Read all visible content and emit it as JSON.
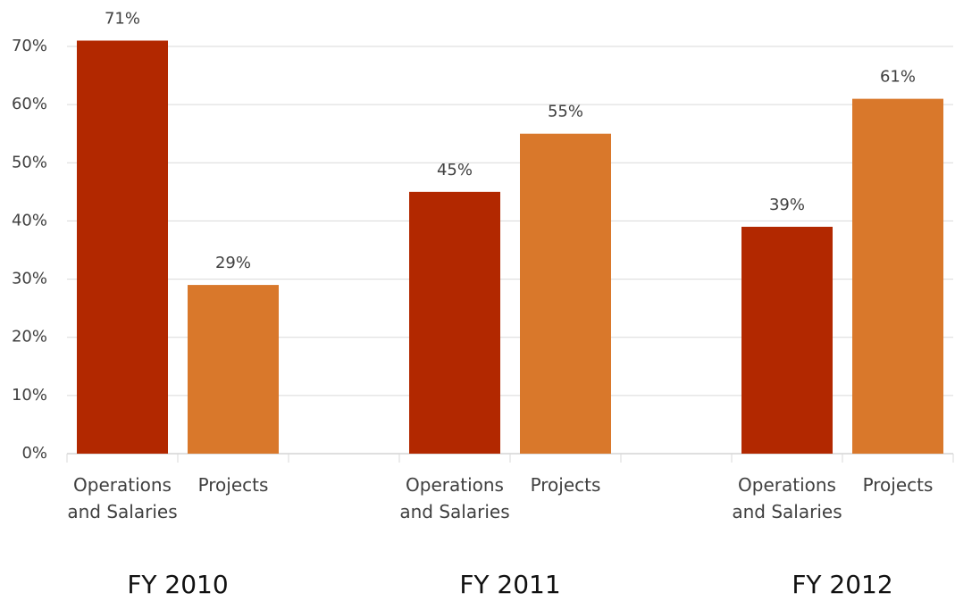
{
  "chart_data": {
    "type": "bar",
    "categories": [
      "Operations and Salaries",
      "Projects",
      null,
      "Operations and Salaries",
      "Projects",
      null,
      "Operations and Salaries",
      "Projects"
    ],
    "values": [
      71,
      29,
      null,
      45,
      55,
      null,
      39,
      61
    ],
    "value_labels": [
      "71%",
      "29%",
      null,
      "45%",
      "55%",
      null,
      "39%",
      "61%"
    ],
    "bar_colors": [
      "#b22800",
      "#d9782b",
      null,
      "#b22800",
      "#d9782b",
      null,
      "#b22800",
      "#d9782b"
    ],
    "group_labels": [
      "FY 2010",
      "FY 2011",
      "FY 2012"
    ],
    "ylim": [
      0,
      70
    ],
    "yticks": [
      {
        "value": 0,
        "label": "0%"
      },
      {
        "value": 10,
        "label": "10%"
      },
      {
        "value": 20,
        "label": "20%"
      },
      {
        "value": 30,
        "label": "30%"
      },
      {
        "value": 40,
        "label": "40%"
      },
      {
        "value": 50,
        "label": "50%"
      },
      {
        "value": 60,
        "label": "60%"
      },
      {
        "value": 70,
        "label": "70%"
      }
    ],
    "grid": true
  }
}
